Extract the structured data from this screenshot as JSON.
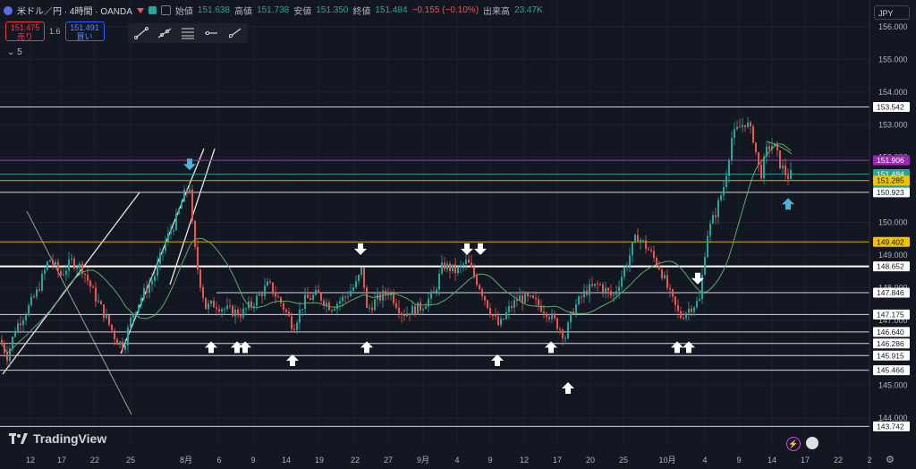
{
  "header": {
    "symbol": "米ドル／円 · 4時間 · OANDA",
    "open_label": "始値",
    "open": "151.638",
    "high_label": "高値",
    "high": "151.738",
    "low_label": "安値",
    "low": "151.350",
    "close_label": "終値",
    "close": "151.484",
    "change": "−0.155 (−0.10%)",
    "volume_label": "出来高",
    "volume": "23.47K"
  },
  "trade": {
    "sell_price": "151.475",
    "sell_label": "売り",
    "spread": "1.6",
    "buy_price": "151.491",
    "buy_label": "買い"
  },
  "indicators_collapse": "5",
  "currency": "JPY",
  "brand": "TradingView",
  "colors": {
    "bg": "#131722",
    "up": "#26a69a",
    "down": "#ef5350",
    "ma": "#5fa86b",
    "purple": "#9c27b0",
    "gold": "#d4b106",
    "cyan": "#4fb0dc"
  },
  "chart_data": {
    "type": "candlestick",
    "y_axis": {
      "min": 143.5,
      "max": 156.5,
      "ticks": [
        "156.000",
        "155.000",
        "154.000",
        "153.000",
        "152.000",
        "150.000",
        "149.000",
        "148.000",
        "147.000",
        "145.000",
        "144.000"
      ]
    },
    "x_axis": {
      "ticks": [
        "12",
        "17",
        "22",
        "25",
        "8月",
        "6",
        "9",
        "14",
        "19",
        "22",
        "27",
        "9月",
        "4",
        "9",
        "12",
        "17",
        "20",
        "25",
        "10月",
        "4",
        "9",
        "14",
        "17",
        "22",
        "2"
      ]
    },
    "levels": [
      {
        "price": 153.542,
        "label": "153.542",
        "color": "#d1d4dc",
        "width": 1
      },
      {
        "price": 151.906,
        "label": "151.906",
        "color": "#9c27b0",
        "width": 1.3
      },
      {
        "price": 151.484,
        "label": "151.484",
        "sub": "02:56:06",
        "color": "#26a69a",
        "width": 0.8,
        "current": true
      },
      {
        "price": 151.285,
        "label": "151.285",
        "color": "#d4b106",
        "width": 1
      },
      {
        "price": 150.923,
        "label": "150.923",
        "color": "#d1d4dc",
        "width": 1
      },
      {
        "price": 149.402,
        "label": "149.402",
        "color": "#d4b106",
        "width": 1
      },
      {
        "price": 148.652,
        "label": "148.652",
        "color": "#ffffff",
        "width": 2
      },
      {
        "price": 147.846,
        "label": "147.846",
        "color": "#d1d4dc",
        "width": 1
      },
      {
        "price": 147.175,
        "label": "147.175",
        "color": "#d1d4dc",
        "width": 1
      },
      {
        "price": 146.64,
        "label": "146.640",
        "color": "#d1d4dc",
        "width": 1
      },
      {
        "price": 146.286,
        "label": "146.286",
        "color": "#d1d4dc",
        "width": 1
      },
      {
        "price": 145.915,
        "label": "145.915",
        "color": "#d1d4dc",
        "width": 1
      },
      {
        "price": 145.466,
        "label": "145.466",
        "color": "#d1d4dc",
        "width": 1
      },
      {
        "price": 143.742,
        "label": "143.742",
        "color": "#d1d4dc",
        "width": 1
      }
    ],
    "price_path": [
      [
        0,
        146.4
      ],
      [
        8,
        145.9
      ],
      [
        18,
        146.8
      ],
      [
        30,
        147.3
      ],
      [
        42,
        147.9
      ],
      [
        55,
        148.9
      ],
      [
        68,
        148.4
      ],
      [
        80,
        148.8
      ],
      [
        92,
        148.6
      ],
      [
        105,
        147.8
      ],
      [
        118,
        147.1
      ],
      [
        130,
        146.4
      ],
      [
        138,
        146.2
      ],
      [
        148,
        147.2
      ],
      [
        160,
        147.8
      ],
      [
        172,
        148.3
      ],
      [
        185,
        149.4
      ],
      [
        197,
        150.1
      ],
      [
        205,
        150.8
      ],
      [
        212,
        151.1
      ],
      [
        216,
        149.5
      ],
      [
        222,
        148.4
      ],
      [
        230,
        147.4
      ],
      [
        240,
        147.5
      ],
      [
        255,
        147.3
      ],
      [
        270,
        147.2
      ],
      [
        285,
        147.6
      ],
      [
        300,
        148.1
      ],
      [
        315,
        147.5
      ],
      [
        328,
        146.8
      ],
      [
        340,
        147.6
      ],
      [
        355,
        147.8
      ],
      [
        370,
        147.4
      ],
      [
        385,
        147.7
      ],
      [
        398,
        148.1
      ],
      [
        405,
        148.6
      ],
      [
        410,
        147.3
      ],
      [
        420,
        147.6
      ],
      [
        435,
        147.9
      ],
      [
        450,
        147.2
      ],
      [
        470,
        147.4
      ],
      [
        485,
        147.8
      ],
      [
        495,
        148.7
      ],
      [
        510,
        148.5
      ],
      [
        522,
        148.8
      ],
      [
        535,
        148.1
      ],
      [
        548,
        147.3
      ],
      [
        558,
        146.8
      ],
      [
        568,
        147.3
      ],
      [
        580,
        147.7
      ],
      [
        595,
        147.6
      ],
      [
        610,
        147.3
      ],
      [
        622,
        146.9
      ],
      [
        632,
        146.5
      ],
      [
        640,
        147.3
      ],
      [
        655,
        147.9
      ],
      [
        670,
        148.1
      ],
      [
        685,
        147.7
      ],
      [
        700,
        148.7
      ],
      [
        712,
        149.6
      ],
      [
        724,
        149.2
      ],
      [
        738,
        148.6
      ],
      [
        750,
        147.7
      ],
      [
        760,
        147.1
      ],
      [
        772,
        147.4
      ],
      [
        782,
        147.6
      ],
      [
        790,
        149.6
      ],
      [
        800,
        150.3
      ],
      [
        810,
        151.2
      ],
      [
        818,
        152.6
      ],
      [
        826,
        152.9
      ],
      [
        834,
        153.1
      ],
      [
        842,
        152.6
      ],
      [
        850,
        151.4
      ],
      [
        858,
        152.3
      ],
      [
        865,
        152.4
      ],
      [
        872,
        151.8
      ],
      [
        880,
        151.4
      ],
      [
        886,
        151.5
      ]
    ],
    "annotations": {
      "down_arrows_at": [
        [
          212,
          151.6
        ],
        [
          403,
          149.0
        ],
        [
          522,
          149.0
        ],
        [
          537,
          149.0
        ],
        [
          780,
          148.1
        ]
      ],
      "up_arrows_at": [
        [
          236,
          146.35
        ],
        [
          265,
          146.35
        ],
        [
          274,
          146.35
        ],
        [
          327,
          145.95
        ],
        [
          410,
          146.35
        ],
        [
          556,
          145.95
        ],
        [
          616,
          146.35
        ],
        [
          635,
          145.1
        ],
        [
          757,
          146.35
        ],
        [
          770,
          146.35
        ],
        [
          881,
          150.75
        ]
      ]
    }
  }
}
